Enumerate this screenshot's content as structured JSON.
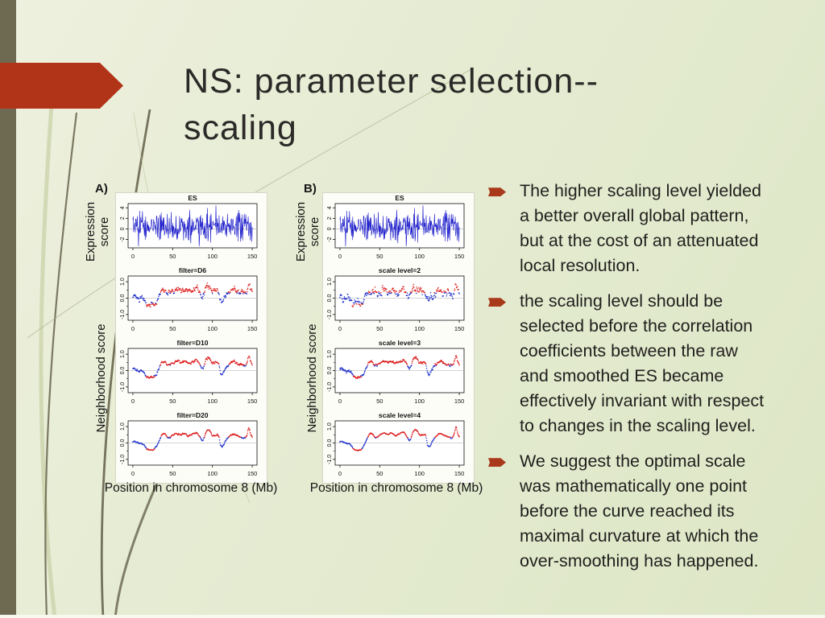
{
  "slide": {
    "title": "NS: parameter selection--\nscaling"
  },
  "decor": {
    "sidebar_color": "#6e6a52",
    "arrow_color": "#b23418",
    "bullet_marker_color": "#a9391b",
    "background_top": "#edf0de",
    "background_bottom": "#dde6c5"
  },
  "figure": {
    "xlabel": "Position in chromosome 8 (Mb)",
    "ylabel_top": "Expression\nscore",
    "ylabel_bottom": "Neighborhood score",
    "colors": {
      "es_line": "#2222cc",
      "ns_pos": "#dd1f1f",
      "ns_neg": "#2233cc",
      "zero_line": "#aaaaaa",
      "axis": "#111111"
    },
    "xticks": [
      {
        "v": 0,
        "t": "0"
      },
      {
        "v": 50,
        "t": "50"
      },
      {
        "v": 100,
        "t": "100"
      },
      {
        "v": 150,
        "t": "150"
      }
    ],
    "es_axis": {
      "ylim": [
        -3.6,
        4.8
      ],
      "yticks": [
        {
          "v": 4,
          "t": "4"
        },
        {
          "v": 2,
          "t": "2"
        },
        {
          "v": 0,
          "t": "0"
        },
        {
          "v": -2,
          "t": "-2"
        }
      ],
      "minor": []
    },
    "ns_axis": {
      "ylim": [
        -1.35,
        1.35
      ],
      "yticks": [
        {
          "v": 1,
          "t": "1.0"
        },
        {
          "v": 0,
          "t": "0.0"
        },
        {
          "v": -1,
          "t": "-1.0"
        }
      ],
      "minor": [
        0.5,
        -0.5
      ]
    },
    "panels": [
      {
        "label": "A)",
        "subplots": [
          {
            "title": "ES",
            "type": "es",
            "seed": 777
          },
          {
            "title": "filter=D6",
            "type": "ns",
            "seed": 101,
            "noise": 0.16,
            "jitter": 0.05,
            "scale": 0.95
          },
          {
            "title": "filter=D10",
            "type": "ns",
            "seed": 202,
            "noise": 0.08,
            "jitter": 0.03,
            "scale": 1.0
          },
          {
            "title": "filter=D20",
            "type": "ns",
            "seed": 303,
            "noise": 0.05,
            "jitter": 0.02,
            "scale": 1.0
          }
        ]
      },
      {
        "label": "B)",
        "subplots": [
          {
            "title": "ES",
            "type": "es",
            "seed": 777
          },
          {
            "title": "scale level=2",
            "type": "ns",
            "seed": 404,
            "noise": 0.24,
            "jitter": 0.07,
            "scale": 0.8
          },
          {
            "title": "scale level=3",
            "type": "ns",
            "seed": 505,
            "noise": 0.08,
            "jitter": 0.03,
            "scale": 1.0
          },
          {
            "title": "scale level=4",
            "type": "ns",
            "seed": 606,
            "noise": 0.03,
            "jitter": 0.012,
            "scale": 1.05
          }
        ]
      }
    ]
  },
  "bullets": [
    {
      "text": "The higher scaling level yielded\na better overall global pattern,\nbut at the cost of an attenuated\nlocal resolution."
    },
    {
      "text": "the scaling level should be\nselected before the correlation\ncoefficients between the raw\nand smoothed ES became\neffectively invariant with respect\nto changes in the scaling level."
    },
    {
      "text": "We suggest the optimal scale\nwas mathematically one point\nbefore the curve reached its\nmaximal curvature at which the\nover-smoothing has happened."
    }
  ]
}
